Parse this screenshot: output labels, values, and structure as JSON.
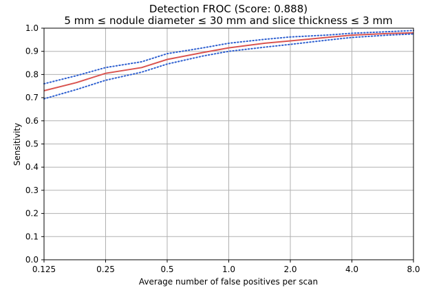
{
  "chart_data": {
    "type": "line",
    "title": "Detection FROC (Score: 0.888)",
    "subtitle": "5 mm ≤ nodule diameter ≤ 30 mm and slice thickness ≤ 3 mm",
    "xlabel": "Average number of false positives per scan",
    "ylabel": "Sensitivity",
    "x_scale": "log2",
    "xlim": [
      0.125,
      8.0
    ],
    "ylim": [
      0.0,
      1.0
    ],
    "x_ticks": [
      0.125,
      0.25,
      0.5,
      1.0,
      2.0,
      4.0,
      8.0
    ],
    "x_tick_labels": [
      "0.125",
      "0.25",
      "0.5",
      "1.0",
      "2.0",
      "4.0",
      "8.0"
    ],
    "y_ticks": [
      0.0,
      0.1,
      0.2,
      0.3,
      0.4,
      0.5,
      0.6,
      0.7,
      0.8,
      0.9,
      1.0
    ],
    "y_tick_labels": [
      "0.0",
      "0.1",
      "0.2",
      "0.3",
      "0.4",
      "0.5",
      "0.6",
      "0.7",
      "0.8",
      "0.9",
      "1.0"
    ],
    "grid": true,
    "series": [
      {
        "style": "solid",
        "color": "#d9534f",
        "x": [
          0.125,
          0.18,
          0.25,
          0.375,
          0.5,
          0.75,
          1.0,
          1.5,
          2.0,
          3.0,
          4.0,
          6.0,
          8.0
        ],
        "y": [
          0.73,
          0.765,
          0.805,
          0.83,
          0.865,
          0.895,
          0.915,
          0.935,
          0.945,
          0.96,
          0.97,
          0.977,
          0.98
        ]
      },
      {
        "style": "dotted",
        "color": "#2d5fd0",
        "x": [
          0.125,
          0.18,
          0.25,
          0.375,
          0.5,
          0.75,
          1.0,
          1.5,
          2.0,
          3.0,
          4.0,
          6.0,
          8.0
        ],
        "y": [
          0.76,
          0.795,
          0.83,
          0.855,
          0.89,
          0.915,
          0.935,
          0.952,
          0.962,
          0.97,
          0.978,
          0.985,
          0.99
        ]
      },
      {
        "style": "dotted",
        "color": "#2d5fd0",
        "x": [
          0.125,
          0.18,
          0.25,
          0.375,
          0.5,
          0.75,
          1.0,
          1.5,
          2.0,
          3.0,
          4.0,
          6.0,
          8.0
        ],
        "y": [
          0.695,
          0.735,
          0.775,
          0.81,
          0.845,
          0.88,
          0.9,
          0.918,
          0.93,
          0.948,
          0.96,
          0.97,
          0.975
        ]
      }
    ]
  }
}
